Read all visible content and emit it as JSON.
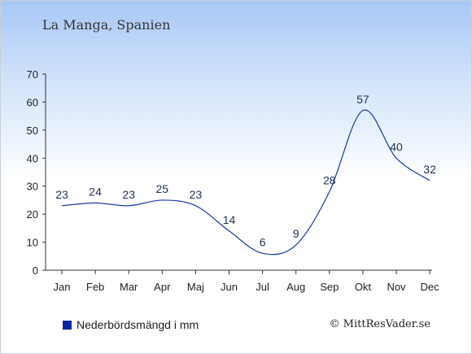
{
  "title": "La Manga, Spanien",
  "legend_label": "Nederbördsmängd i mm",
  "credit": "© MittResVader.se",
  "colors": {
    "line": "#1a3aa8",
    "swatch": "#0a23a0",
    "axis": "#333333"
  },
  "chart_data": {
    "type": "line",
    "categories": [
      "Jan",
      "Feb",
      "Mar",
      "Apr",
      "Maj",
      "Jun",
      "Jul",
      "Aug",
      "Sep",
      "Okt",
      "Nov",
      "Dec"
    ],
    "series": [
      {
        "name": "Nederbördsmängd i mm",
        "values": [
          23,
          24,
          23,
          25,
          23,
          14,
          6,
          9,
          28,
          57,
          40,
          32
        ]
      }
    ],
    "yticks": [
      0,
      10,
      20,
      30,
      40,
      50,
      60,
      70
    ],
    "ylim": [
      0,
      70
    ],
    "grid": false,
    "legend_position": "bottom-left"
  }
}
